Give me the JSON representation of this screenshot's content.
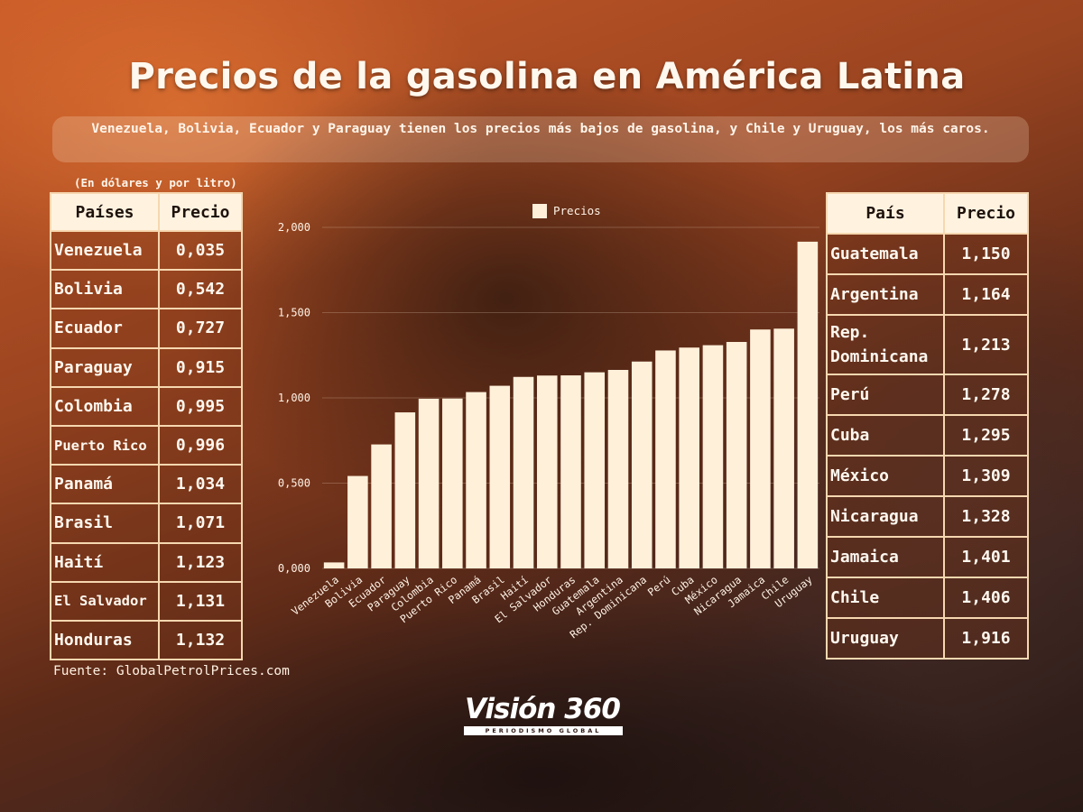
{
  "title": "Precios de la gasolina en América Latina",
  "subtitle": "Venezuela, Bolivia, Ecuador y Paraguay tienen los precios más bajos de gasolina, y Chile y Uruguay, los más caros.",
  "unit_note": "(En dólares y por litro)",
  "source": "Fuente: GlobalPetrolPrices.com",
  "logo": {
    "main": "Visión 360",
    "sub": "PERIODISMO GLOBAL"
  },
  "colors": {
    "bar": "#fff0da",
    "table_header_bg": "#fff3e0",
    "table_border": "#f6d7b0",
    "text_light": "#fff8ef"
  },
  "left_table": {
    "header_country": "Países",
    "header_price": "Precio",
    "rows": [
      {
        "country": "Venezuela",
        "price": "0,035"
      },
      {
        "country": "Bolivia",
        "price": "0,542"
      },
      {
        "country": "Ecuador",
        "price": "0,727"
      },
      {
        "country": "Paraguay",
        "price": "0,915"
      },
      {
        "country": "Colombia",
        "price": "0,995"
      },
      {
        "country": "Puerto Rico",
        "price": "0,996"
      },
      {
        "country": "Panamá",
        "price": "1,034"
      },
      {
        "country": "Brasil",
        "price": "1,071"
      },
      {
        "country": "Haití",
        "price": "1,123"
      },
      {
        "country": "El Salvador",
        "price": "1,131"
      },
      {
        "country": "Honduras",
        "price": "1,132"
      }
    ]
  },
  "right_table": {
    "header_country": "País",
    "header_price": "Precio",
    "rows": [
      {
        "country": "Guatemala",
        "price": "1,150"
      },
      {
        "country": "Argentina",
        "price": "1,164"
      },
      {
        "country": "Rep. Dominicana",
        "price": "1,213"
      },
      {
        "country": "Perú",
        "price": "1,278"
      },
      {
        "country": "Cuba",
        "price": "1,295"
      },
      {
        "country": "México",
        "price": "1,309"
      },
      {
        "country": "Nicaragua",
        "price": "1,328"
      },
      {
        "country": "Jamaica",
        "price": "1,401"
      },
      {
        "country": "Chile",
        "price": "1,406"
      },
      {
        "country": "Uruguay",
        "price": "1,916"
      }
    ]
  },
  "chart_data": {
    "type": "bar",
    "categories": [
      "Venezuela",
      "Bolivia",
      "Ecuador",
      "Paraguay",
      "Colombia",
      "Puerto Rico",
      "Panamá",
      "Brasil",
      "Haití",
      "El Salvador",
      "Honduras",
      "Guatemala",
      "Argentina",
      "Rep. Dominicana",
      "Perú",
      "Cuba",
      "México",
      "Nicaragua",
      "Jamaica",
      "Chile",
      "Uruguay"
    ],
    "series": [
      {
        "name": "Precios",
        "values": [
          0.035,
          0.542,
          0.727,
          0.915,
          0.995,
          0.996,
          1.034,
          1.071,
          1.123,
          1.131,
          1.132,
          1.15,
          1.164,
          1.213,
          1.278,
          1.295,
          1.309,
          1.328,
          1.401,
          1.406,
          1.916
        ]
      }
    ],
    "ylim": [
      0,
      2
    ],
    "yticks": [
      0,
      0.5,
      1,
      1.5,
      2
    ],
    "ytick_labels": [
      "0,000",
      "0,500",
      "1,000",
      "1,500",
      "2,000"
    ],
    "legend": "top-center",
    "grid": true,
    "title": "",
    "xlabel": "",
    "ylabel": ""
  }
}
